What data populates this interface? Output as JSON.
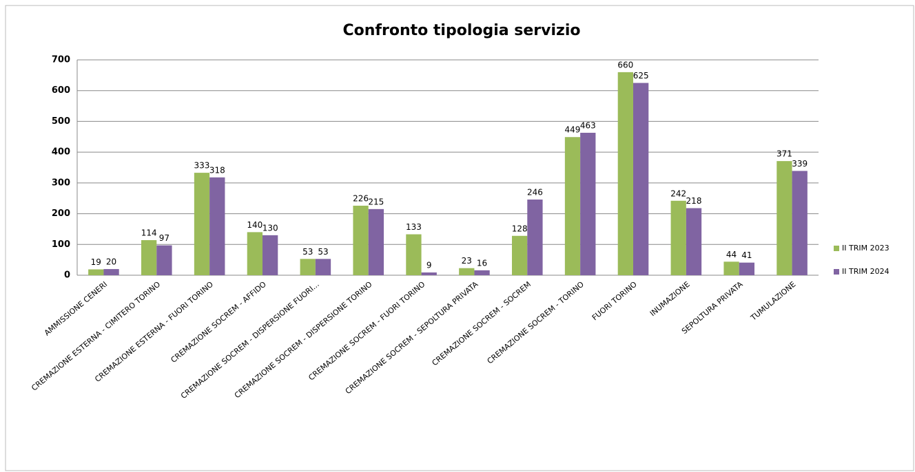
{
  "chart_data": {
    "type": "bar",
    "title": "Confronto tipologia servizio",
    "categories": [
      "AMMISSIONE CENERI",
      "CREMAZIONE ESTERNA - CIMITERO TORINO",
      "CREMAZIONE ESTERNA - FUORI TORINO",
      "CREMAZIONE SOCREM - AFFIDO",
      "CREMAZIONE SOCREM - DISPERSIONE FUORI...",
      "CREMAZIONE SOCREM - DISPERSIONE TORINO",
      "CREMAZIONE SOCREM - FUORI TORINO",
      "CREMAZIONE SOCREM - SEPOLTURA PRIVATA",
      "CREMAZIONE SOCREM - SOCREM",
      "CREMAZIONE SOCREM - TORINO",
      "FUORI TORINO",
      "INUMAZIONE",
      "SEPOLTURA PRIVATA",
      "TUMULAZIONE"
    ],
    "series": [
      {
        "name": "II TRIM 2023",
        "color": "#9bbb59",
        "values": [
          19,
          114,
          333,
          140,
          53,
          226,
          133,
          23,
          128,
          449,
          660,
          242,
          44,
          371
        ]
      },
      {
        "name": "II TRIM 2024",
        "color": "#8064a2",
        "values": [
          20,
          97,
          318,
          130,
          53,
          215,
          9,
          16,
          246,
          463,
          625,
          218,
          41,
          339
        ]
      }
    ],
    "ylim": [
      0,
      700
    ],
    "yticks": [
      0,
      100,
      200,
      300,
      400,
      500,
      600,
      700
    ],
    "grid": true,
    "legend": "right"
  }
}
